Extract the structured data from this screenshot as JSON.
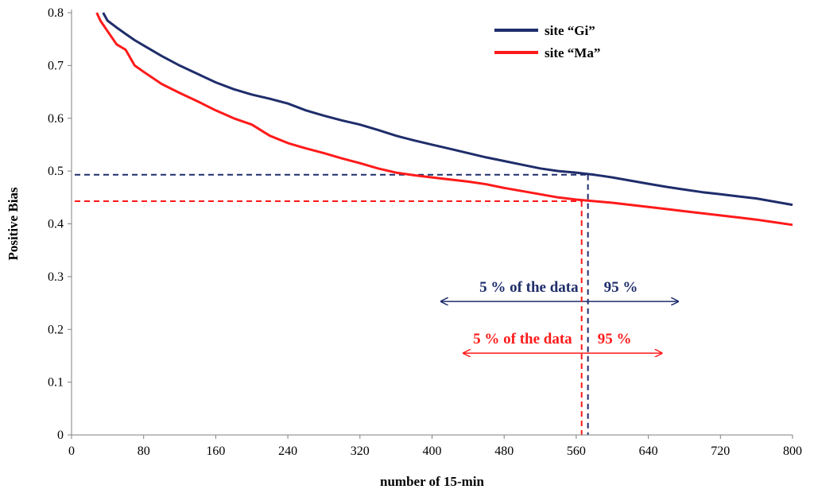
{
  "chart_data": {
    "type": "line",
    "title": "",
    "xlabel": "number of 15-min",
    "ylabel": "Positive Bias",
    "xlim": [
      0,
      800
    ],
    "ylim": [
      0,
      0.8
    ],
    "xticks": [
      0,
      80,
      160,
      240,
      320,
      400,
      480,
      560,
      640,
      720,
      800
    ],
    "yticks": [
      0,
      0.1,
      0.2,
      0.3,
      0.4,
      0.5,
      0.6,
      0.7,
      0.8
    ],
    "grid": false,
    "legend_position": "top-right",
    "series": [
      {
        "name": "site “Gi”",
        "color": "#1f2d6b",
        "x": [
          35,
          40,
          50,
          60,
          70,
          80,
          100,
          120,
          140,
          160,
          180,
          200,
          220,
          240,
          260,
          280,
          300,
          320,
          340,
          360,
          380,
          400,
          420,
          440,
          460,
          480,
          500,
          520,
          540,
          560,
          580,
          600,
          620,
          640,
          660,
          680,
          700,
          720,
          740,
          760,
          780,
          800
        ],
        "y": [
          0.8,
          0.785,
          0.772,
          0.76,
          0.748,
          0.738,
          0.718,
          0.7,
          0.684,
          0.668,
          0.655,
          0.645,
          0.637,
          0.628,
          0.615,
          0.605,
          0.596,
          0.588,
          0.578,
          0.567,
          0.558,
          0.55,
          0.542,
          0.534,
          0.526,
          0.519,
          0.512,
          0.505,
          0.5,
          0.497,
          0.493,
          0.488,
          0.482,
          0.476,
          0.47,
          0.465,
          0.46,
          0.456,
          0.452,
          0.448,
          0.442,
          0.436
        ]
      },
      {
        "name": "site “Ma”",
        "color": "#ff1a1a",
        "x": [
          28,
          32,
          40,
          50,
          60,
          70,
          80,
          100,
          120,
          140,
          160,
          180,
          200,
          220,
          240,
          260,
          280,
          300,
          320,
          340,
          360,
          380,
          400,
          420,
          440,
          460,
          480,
          500,
          520,
          540,
          560,
          580,
          600,
          620,
          640,
          660,
          680,
          700,
          720,
          740,
          760,
          780,
          800
        ],
        "y": [
          0.8,
          0.785,
          0.765,
          0.74,
          0.73,
          0.7,
          0.688,
          0.665,
          0.648,
          0.632,
          0.615,
          0.6,
          0.588,
          0.567,
          0.553,
          0.543,
          0.534,
          0.524,
          0.515,
          0.505,
          0.497,
          0.492,
          0.488,
          0.484,
          0.48,
          0.475,
          0.468,
          0.462,
          0.456,
          0.45,
          0.446,
          0.443,
          0.44,
          0.436,
          0.432,
          0.428,
          0.424,
          0.42,
          0.416,
          0.412,
          0.408,
          0.403,
          0.398
        ]
      }
    ],
    "annotations": [
      {
        "series": "site “Gi”",
        "threshold_x": 573,
        "threshold_y": 0.493,
        "left_text": "5 % of the data",
        "right_text": "95 %",
        "arrow_x": [
          410,
          673
        ],
        "arrow_y": 0.253
      },
      {
        "series": "site “Ma”",
        "threshold_x": 566,
        "threshold_y": 0.443,
        "left_text": "5 % of the data",
        "right_text": "95 %",
        "arrow_x": [
          435,
          655
        ],
        "arrow_y": 0.155
      }
    ]
  }
}
